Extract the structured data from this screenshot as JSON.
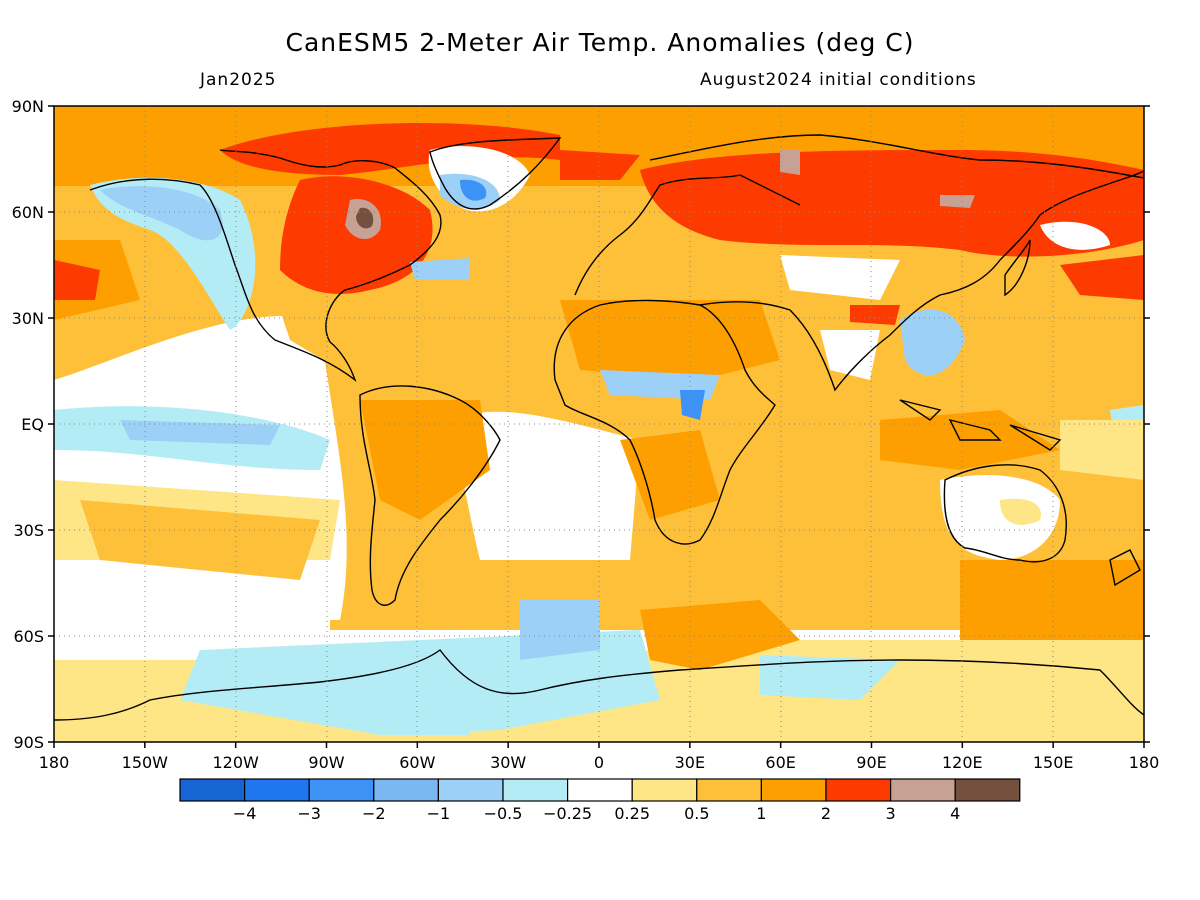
{
  "header": {
    "title": "CanESM5 2-Meter Air Temp. Anomalies (deg C)",
    "valid_month": "Jan2025",
    "init_conditions": "August2024 initial conditions"
  },
  "map": {
    "lat_labels": [
      "90N",
      "60N",
      "30N",
      "EQ",
      "30S",
      "60S",
      "90S"
    ],
    "lon_labels": [
      "180",
      "150W",
      "120W",
      "90W",
      "60W",
      "30W",
      "0",
      "30E",
      "60E",
      "90E",
      "120E",
      "150E",
      "180"
    ],
    "projection": "cylindrical equidistant",
    "grid": "dotted"
  },
  "legend": {
    "labels": [
      "-4",
      "-3",
      "-2",
      "-1",
      "-0.5",
      "-0.25",
      "0.25",
      "0.5",
      "1",
      "2",
      "3",
      "4"
    ],
    "colors": [
      "#1764d4",
      "#2076ee",
      "#3d92f5",
      "#7bb8f2",
      "#9dd0f6",
      "#b4ecf6",
      "#ffffff",
      "#fee585",
      "#fec039",
      "#fd9f00",
      "#fd3a00",
      "#c7a194",
      "#74503f"
    ]
  },
  "colors": {
    "coastline": "#000000",
    "gridline": "#888888"
  }
}
